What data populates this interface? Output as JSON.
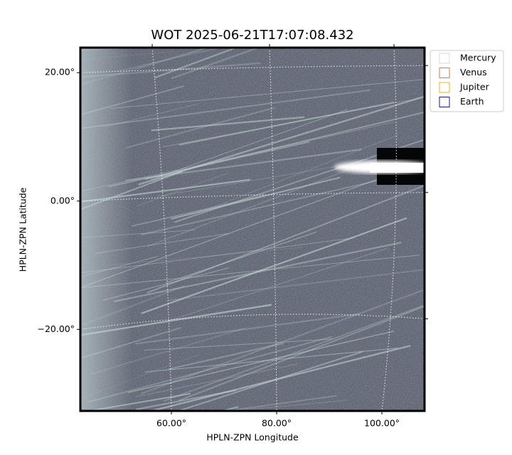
{
  "chart_data": {
    "type": "image",
    "title": "WOT 2025-06-21T17:07:08.432",
    "x_label": "HPLN-ZPN Longitude",
    "y_label": "HPLN-ZPN Latitude",
    "xlim": [
      42.7,
      108.1
    ],
    "ylim": [
      -32.7,
      23.9
    ],
    "xticks": [
      {
        "value": 60,
        "label": "60.00°"
      },
      {
        "value": 80,
        "label": "80.00°"
      },
      {
        "value": 100,
        "label": "100.00°"
      }
    ],
    "yticks": [
      {
        "value": -20,
        "label": "−20.00°"
      },
      {
        "value": 0,
        "label": "0.00°"
      },
      {
        "value": 20,
        "label": "20.00°"
      }
    ],
    "grid": true,
    "legend_position": "upper right outside",
    "legend": [
      {
        "name": "Mercury",
        "color": "#d9d9d9"
      },
      {
        "name": "Venus",
        "color": "#e07b39"
      },
      {
        "name": "Jupiter",
        "color": "#e8b030"
      },
      {
        "name": "Earth",
        "color": "#1a1a80"
      }
    ]
  }
}
